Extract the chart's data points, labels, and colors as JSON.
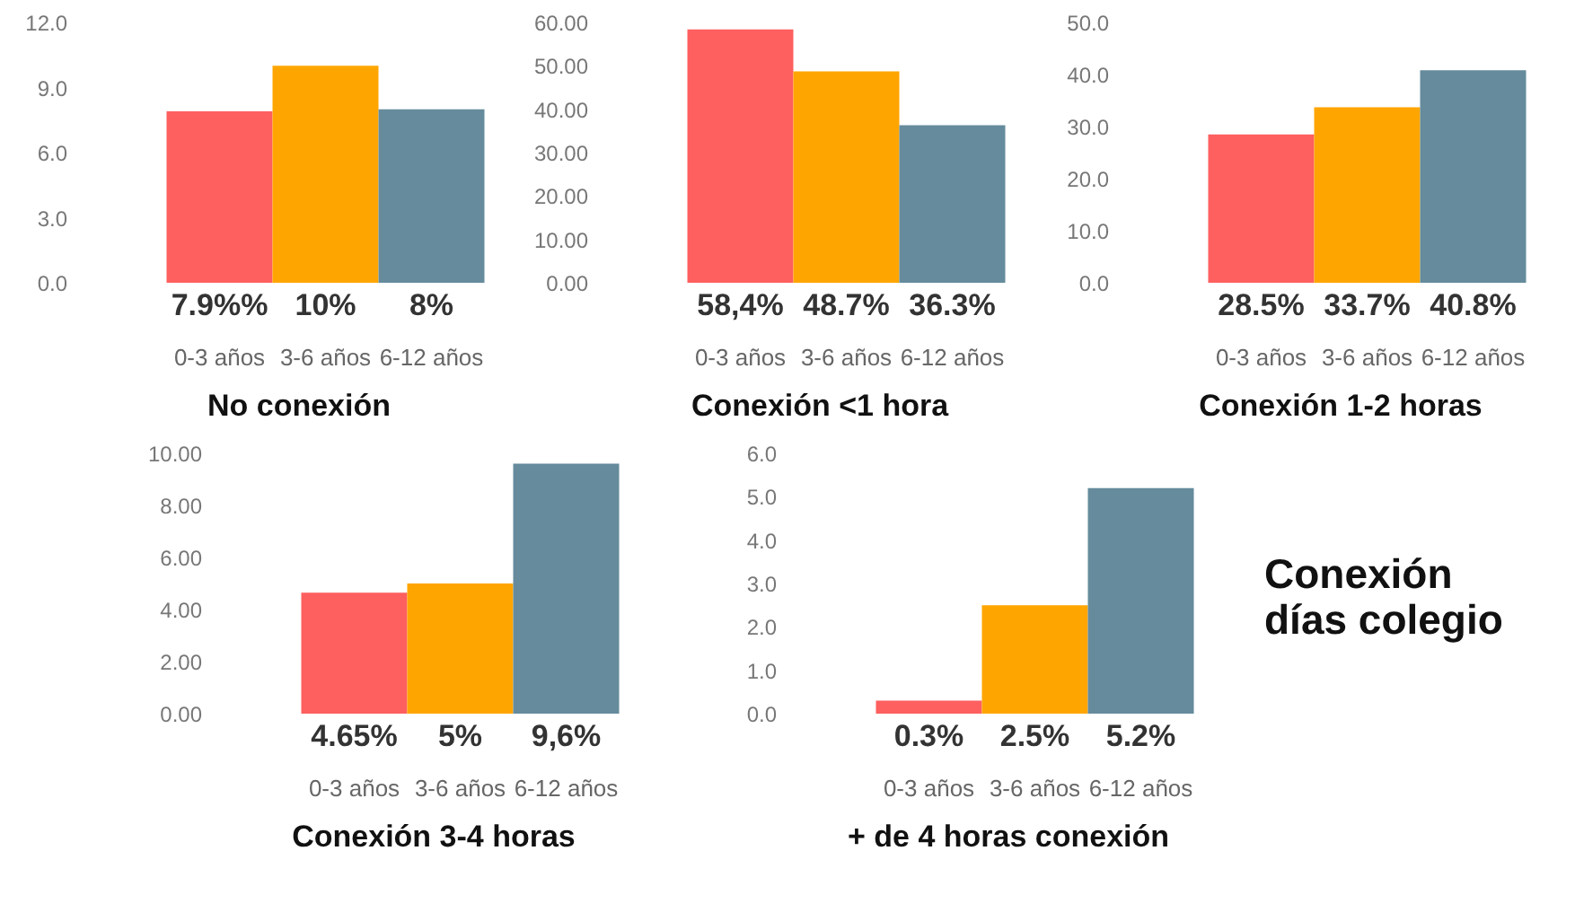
{
  "chart_data": [
    {
      "type": "bar",
      "title": "No conexión",
      "categories": [
        "0-3 años",
        "3-6 años",
        "6-12 años"
      ],
      "values": [
        7.9,
        10,
        8
      ],
      "value_labels": [
        "7.9%%",
        "10%",
        "8%"
      ],
      "colors": [
        "#fe5f5f",
        "#ffa500",
        "#658b9c"
      ],
      "ylim": [
        0,
        12
      ],
      "yticks": [
        {
          "value": 0,
          "label": "0.0"
        },
        {
          "value": 3,
          "label": "3.0"
        },
        {
          "value": 6,
          "label": "6.0"
        },
        {
          "value": 9,
          "label": "9.0"
        },
        {
          "value": 12,
          "label": "12.0"
        }
      ]
    },
    {
      "type": "bar",
      "title": "Conexión <1 hora",
      "categories": [
        "0-3 años",
        "3-6 años",
        "6-12 años"
      ],
      "values": [
        58.4,
        48.7,
        36.3
      ],
      "value_labels": [
        "58,4%",
        "48.7%",
        "36.3%"
      ],
      "colors": [
        "#fe5f5f",
        "#ffa500",
        "#658b9c"
      ],
      "ylim": [
        0,
        60
      ],
      "yticks": [
        {
          "value": 0,
          "label": "0.00"
        },
        {
          "value": 10,
          "label": "10.00"
        },
        {
          "value": 20,
          "label": "20.00"
        },
        {
          "value": 30,
          "label": "30.00"
        },
        {
          "value": 40,
          "label": "40.00"
        },
        {
          "value": 50,
          "label": "50.00"
        },
        {
          "value": 60,
          "label": "60.00"
        }
      ]
    },
    {
      "type": "bar",
      "title": "Conexión 1-2 horas",
      "categories": [
        "0-3 años",
        "3-6 años",
        "6-12 años"
      ],
      "values": [
        28.5,
        33.7,
        40.8
      ],
      "value_labels": [
        "28.5%",
        "33.7%",
        "40.8%"
      ],
      "colors": [
        "#fe5f5f",
        "#ffa500",
        "#658b9c"
      ],
      "ylim": [
        0,
        50
      ],
      "yticks": [
        {
          "value": 0,
          "label": "0.0"
        },
        {
          "value": 10,
          "label": "10.0"
        },
        {
          "value": 20,
          "label": "20.0"
        },
        {
          "value": 30,
          "label": "30.0"
        },
        {
          "value": 40,
          "label": "40.0"
        },
        {
          "value": 50,
          "label": "50.0"
        }
      ]
    },
    {
      "type": "bar",
      "title": "Conexión 3-4 horas",
      "categories": [
        "0-3 años",
        "3-6 años",
        "6-12 años"
      ],
      "values": [
        4.65,
        5,
        9.6
      ],
      "value_labels": [
        "4.65%",
        "5%",
        "9,6%"
      ],
      "colors": [
        "#fe5f5f",
        "#ffa500",
        "#658b9c"
      ],
      "ylim": [
        0,
        10
      ],
      "yticks": [
        {
          "value": 0,
          "label": "0.00"
        },
        {
          "value": 2,
          "label": "2.00"
        },
        {
          "value": 4,
          "label": "4.00"
        },
        {
          "value": 6,
          "label": "6.00"
        },
        {
          "value": 8,
          "label": "8.00"
        },
        {
          "value": 10,
          "label": "10.00"
        }
      ]
    },
    {
      "type": "bar",
      "title": "+ de 4 horas conexión",
      "categories": [
        "0-3 años",
        "3-6 años",
        "6-12 años"
      ],
      "values": [
        0.3,
        2.5,
        5.2
      ],
      "value_labels": [
        "0.3%",
        "2.5%",
        "5.2%"
      ],
      "colors": [
        "#fe5f5f",
        "#ffa500",
        "#658b9c"
      ],
      "ylim": [
        0,
        6
      ],
      "yticks": [
        {
          "value": 0,
          "label": "0.0"
        },
        {
          "value": 1,
          "label": "1.0"
        },
        {
          "value": 2,
          "label": "2.0"
        },
        {
          "value": 3,
          "label": "3.0"
        },
        {
          "value": 4,
          "label": "4.0"
        },
        {
          "value": 5,
          "label": "5.0"
        },
        {
          "value": 6,
          "label": "6.0"
        }
      ]
    },
    {
      "type": "other",
      "annotations": [
        "Conexión",
        "días  colegio"
      ]
    }
  ]
}
